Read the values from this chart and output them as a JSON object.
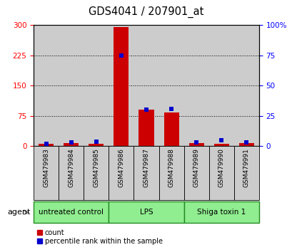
{
  "title": "GDS4041 / 207901_at",
  "samples": [
    "GSM479983",
    "GSM479984",
    "GSM479985",
    "GSM479986",
    "GSM479987",
    "GSM479988",
    "GSM479989",
    "GSM479990",
    "GSM479991"
  ],
  "counts": [
    5,
    8,
    6,
    295,
    90,
    83,
    7,
    6,
    7
  ],
  "percentiles": [
    2,
    3,
    4,
    75,
    30,
    31,
    3,
    5,
    3
  ],
  "ylim_left": [
    0,
    300
  ],
  "ylim_right": [
    0,
    100
  ],
  "yticks_left": [
    0,
    75,
    150,
    225,
    300
  ],
  "yticks_right": [
    0,
    25,
    50,
    75,
    100
  ],
  "bar_color": "#cc0000",
  "percentile_color": "#0000cc",
  "groups": [
    {
      "label": "untreated control",
      "start": 0,
      "end": 3,
      "color": "#90ee90"
    },
    {
      "label": "LPS",
      "start": 3,
      "end": 6,
      "color": "#90ee90"
    },
    {
      "label": "Shiga toxin 1",
      "start": 6,
      "end": 9,
      "color": "#90ee90"
    }
  ],
  "group_border_color": "#228B22",
  "sample_bg_color": "#cccccc",
  "bar_width": 0.6,
  "percentile_marker_size": 5,
  "plot_bg_color": "#ffffff"
}
